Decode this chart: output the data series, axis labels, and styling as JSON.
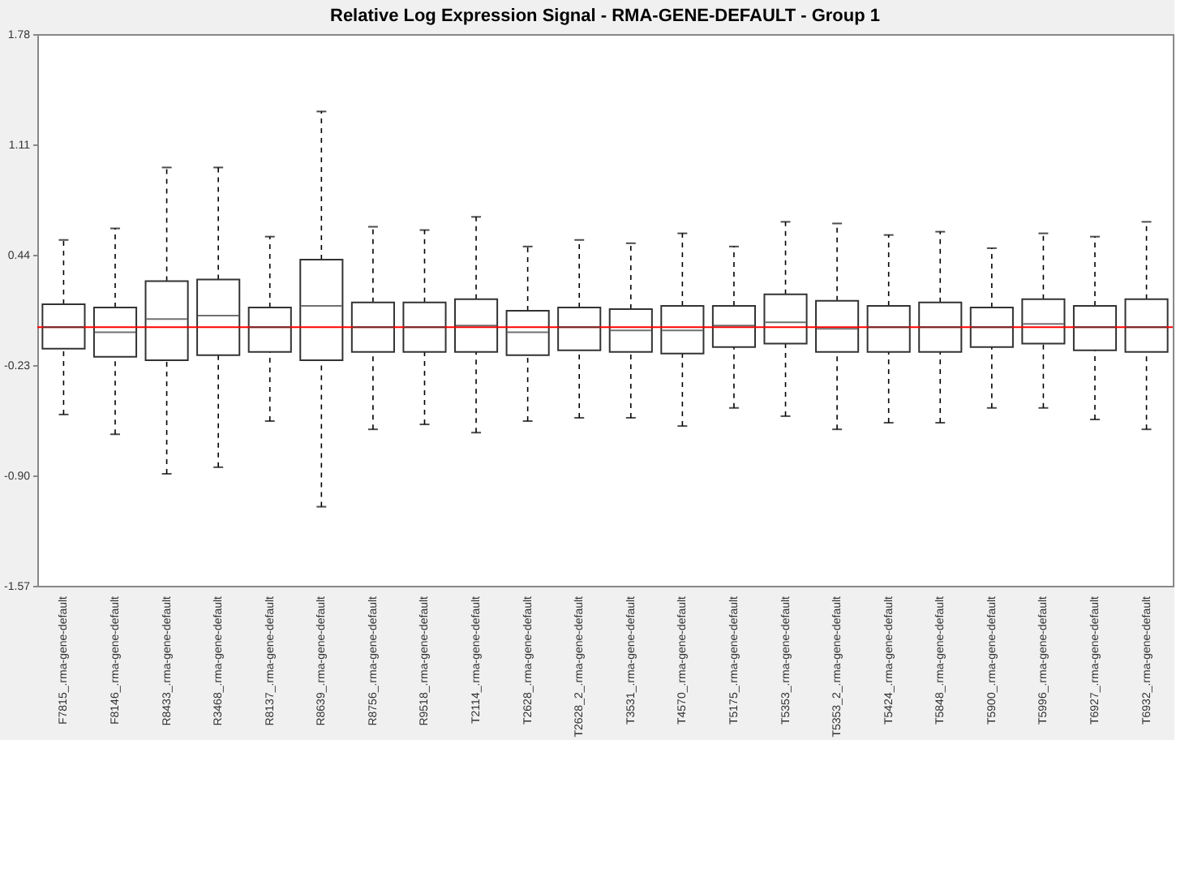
{
  "chart_data": {
    "type": "box",
    "title": "Relative Log Expression Signal - RMA-GENE-DEFAULT - Group 1",
    "categories": [
      "F7815_.rma-gene-default",
      "F8146_.rma-gene-default",
      "R8433_.rma-gene-default",
      "R3468_.rma-gene-default",
      "R8137_.rma-gene-default",
      "R8639_.rma-gene-default",
      "R8756_.rma-gene-default",
      "R9518_.rma-gene-default",
      "T2114_.rma-gene-default",
      "T2628_.rma-gene-default",
      "T2628_2_.rma-gene-default",
      "T3531_.rma-gene-default",
      "T4570_.rma-gene-default",
      "T5175_.rma-gene-default",
      "T5353_.rma-gene-default",
      "T5353_2_.rma-gene-default",
      "T5424_.rma-gene-default",
      "T5848_.rma-gene-default",
      "T5900_.rma-gene-default",
      "T5996_.rma-gene-default",
      "T6927_.rma-gene-default",
      "T6932_.rma-gene-default"
    ],
    "boxes": [
      {
        "low": -0.53,
        "q1": -0.13,
        "median": 0.0,
        "q3": 0.14,
        "high": 0.53
      },
      {
        "low": -0.65,
        "q1": -0.18,
        "median": -0.03,
        "q3": 0.12,
        "high": 0.6
      },
      {
        "low": -0.89,
        "q1": -0.2,
        "median": 0.05,
        "q3": 0.28,
        "high": 0.97
      },
      {
        "low": -0.85,
        "q1": -0.17,
        "median": 0.07,
        "q3": 0.29,
        "high": 0.97
      },
      {
        "low": -0.57,
        "q1": -0.15,
        "median": 0.0,
        "q3": 0.12,
        "high": 0.55
      },
      {
        "low": -1.09,
        "q1": -0.2,
        "median": 0.13,
        "q3": 0.41,
        "high": 1.31
      },
      {
        "low": -0.62,
        "q1": -0.15,
        "median": 0.0,
        "q3": 0.15,
        "high": 0.61
      },
      {
        "low": -0.59,
        "q1": -0.15,
        "median": 0.0,
        "q3": 0.15,
        "high": 0.59
      },
      {
        "low": -0.64,
        "q1": -0.15,
        "median": 0.01,
        "q3": 0.17,
        "high": 0.67
      },
      {
        "low": -0.57,
        "q1": -0.17,
        "median": -0.03,
        "q3": 0.1,
        "high": 0.49
      },
      {
        "low": -0.55,
        "q1": -0.14,
        "median": 0.0,
        "q3": 0.12,
        "high": 0.53
      },
      {
        "low": -0.55,
        "q1": -0.15,
        "median": -0.02,
        "q3": 0.11,
        "high": 0.51
      },
      {
        "low": -0.6,
        "q1": -0.16,
        "median": -0.02,
        "q3": 0.13,
        "high": 0.57
      },
      {
        "low": -0.49,
        "q1": -0.12,
        "median": 0.01,
        "q3": 0.13,
        "high": 0.49
      },
      {
        "low": -0.54,
        "q1": -0.1,
        "median": 0.03,
        "q3": 0.2,
        "high": 0.64
      },
      {
        "low": -0.62,
        "q1": -0.15,
        "median": -0.01,
        "q3": 0.16,
        "high": 0.63
      },
      {
        "low": -0.58,
        "q1": -0.15,
        "median": 0.0,
        "q3": 0.13,
        "high": 0.56
      },
      {
        "low": -0.58,
        "q1": -0.15,
        "median": 0.0,
        "q3": 0.15,
        "high": 0.58
      },
      {
        "low": -0.49,
        "q1": -0.12,
        "median": 0.0,
        "q3": 0.12,
        "high": 0.48
      },
      {
        "low": -0.49,
        "q1": -0.1,
        "median": 0.02,
        "q3": 0.17,
        "high": 0.57
      },
      {
        "low": -0.56,
        "q1": -0.14,
        "median": 0.0,
        "q3": 0.13,
        "high": 0.55
      },
      {
        "low": -0.62,
        "q1": -0.15,
        "median": 0.0,
        "q3": 0.17,
        "high": 0.64
      }
    ],
    "ylim": [
      -1.57,
      1.78
    ],
    "yticks": [
      1.78,
      1.11,
      0.44,
      -0.23,
      {
        "value": -0.9,
        "label": "-0.90"
      },
      -1.57
    ],
    "ref_lines": [
      {
        "axis": "y",
        "value": 0,
        "color": "#ff0000"
      }
    ],
    "grid": false
  }
}
